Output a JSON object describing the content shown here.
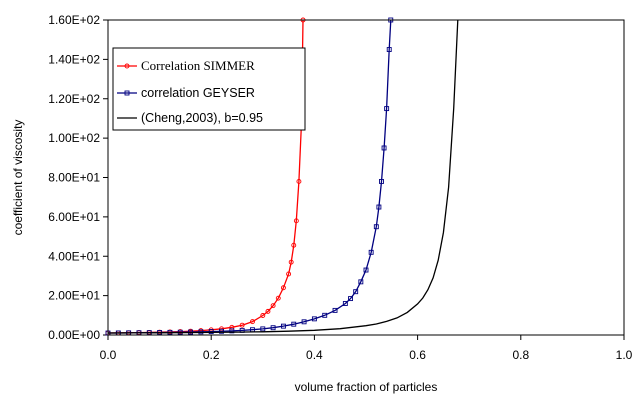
{
  "chart_data": {
    "type": "line",
    "title": "",
    "xlabel": "volume fraction of particles",
    "ylabel": "coefficient of viscosity",
    "xlim": [
      0.0,
      1.0
    ],
    "ylim": [
      0,
      160
    ],
    "x_ticks": [
      0.0,
      0.2,
      0.4,
      0.6,
      0.8,
      1.0
    ],
    "x_tick_labels": [
      "0.0",
      "0.2",
      "0.4",
      "0.6",
      "0.8",
      "1.0"
    ],
    "y_ticks": [
      0,
      20,
      40,
      60,
      80,
      100,
      120,
      140,
      160
    ],
    "y_tick_labels": [
      "0.00E+00",
      "2.00E+01",
      "4.00E+01",
      "6.00E+01",
      "8.00E+01",
      "1.00E+02",
      "1.20E+02",
      "1.40E+02",
      "1.60E+02"
    ],
    "grid": false,
    "legend_position": "top-left",
    "series": [
      {
        "name": "Correlation SIMMER",
        "color": "#ff0000",
        "marker": "circle",
        "x": [
          0.0,
          0.02,
          0.04,
          0.06,
          0.08,
          0.1,
          0.12,
          0.14,
          0.16,
          0.18,
          0.2,
          0.22,
          0.24,
          0.26,
          0.28,
          0.3,
          0.31,
          0.32,
          0.33,
          0.34,
          0.35,
          0.355,
          0.36,
          0.365,
          0.37,
          0.375,
          0.378
        ],
        "y": [
          1.0,
          1.06,
          1.13,
          1.21,
          1.31,
          1.42,
          1.56,
          1.73,
          1.95,
          2.24,
          2.62,
          3.14,
          3.89,
          5.0,
          6.8,
          9.9,
          12.0,
          14.9,
          18.7,
          24.0,
          31.0,
          37.0,
          45.6,
          58.0,
          78.0,
          108.0,
          160.0
        ]
      },
      {
        "name": "correlation GEYSER",
        "color": "#000080",
        "marker": "square",
        "x": [
          0.0,
          0.02,
          0.04,
          0.06,
          0.08,
          0.1,
          0.12,
          0.14,
          0.16,
          0.18,
          0.2,
          0.22,
          0.24,
          0.26,
          0.28,
          0.3,
          0.32,
          0.34,
          0.36,
          0.38,
          0.4,
          0.42,
          0.44,
          0.46,
          0.47,
          0.48,
          0.49,
          0.5,
          0.51,
          0.52,
          0.525,
          0.53,
          0.535,
          0.54,
          0.545,
          0.548
        ],
        "y": [
          1.0,
          1.04,
          1.09,
          1.14,
          1.2,
          1.26,
          1.33,
          1.41,
          1.5,
          1.61,
          1.74,
          1.9,
          2.1,
          2.35,
          2.67,
          3.1,
          3.7,
          4.5,
          5.5,
          6.7,
          8.2,
          10.0,
          12.5,
          16.0,
          18.5,
          22.0,
          27.0,
          33.0,
          42.0,
          55.0,
          65.0,
          78.0,
          95.0,
          115.0,
          145.0,
          160.0
        ]
      },
      {
        "name": "(Cheng,2003), b=0.95",
        "color": "#000000",
        "marker": "none",
        "x": [
          0.0,
          0.05,
          0.1,
          0.15,
          0.2,
          0.25,
          0.3,
          0.35,
          0.4,
          0.45,
          0.5,
          0.52,
          0.54,
          0.56,
          0.58,
          0.6,
          0.61,
          0.62,
          0.63,
          0.64,
          0.65,
          0.66,
          0.67,
          0.678
        ],
        "y": [
          1.0,
          1.05,
          1.12,
          1.2,
          1.3,
          1.45,
          1.65,
          1.95,
          2.4,
          3.2,
          4.7,
          5.6,
          6.9,
          8.7,
          11.5,
          15.8,
          18.8,
          23.0,
          29.0,
          38.0,
          52.0,
          75.0,
          115.0,
          160.0
        ]
      }
    ]
  }
}
